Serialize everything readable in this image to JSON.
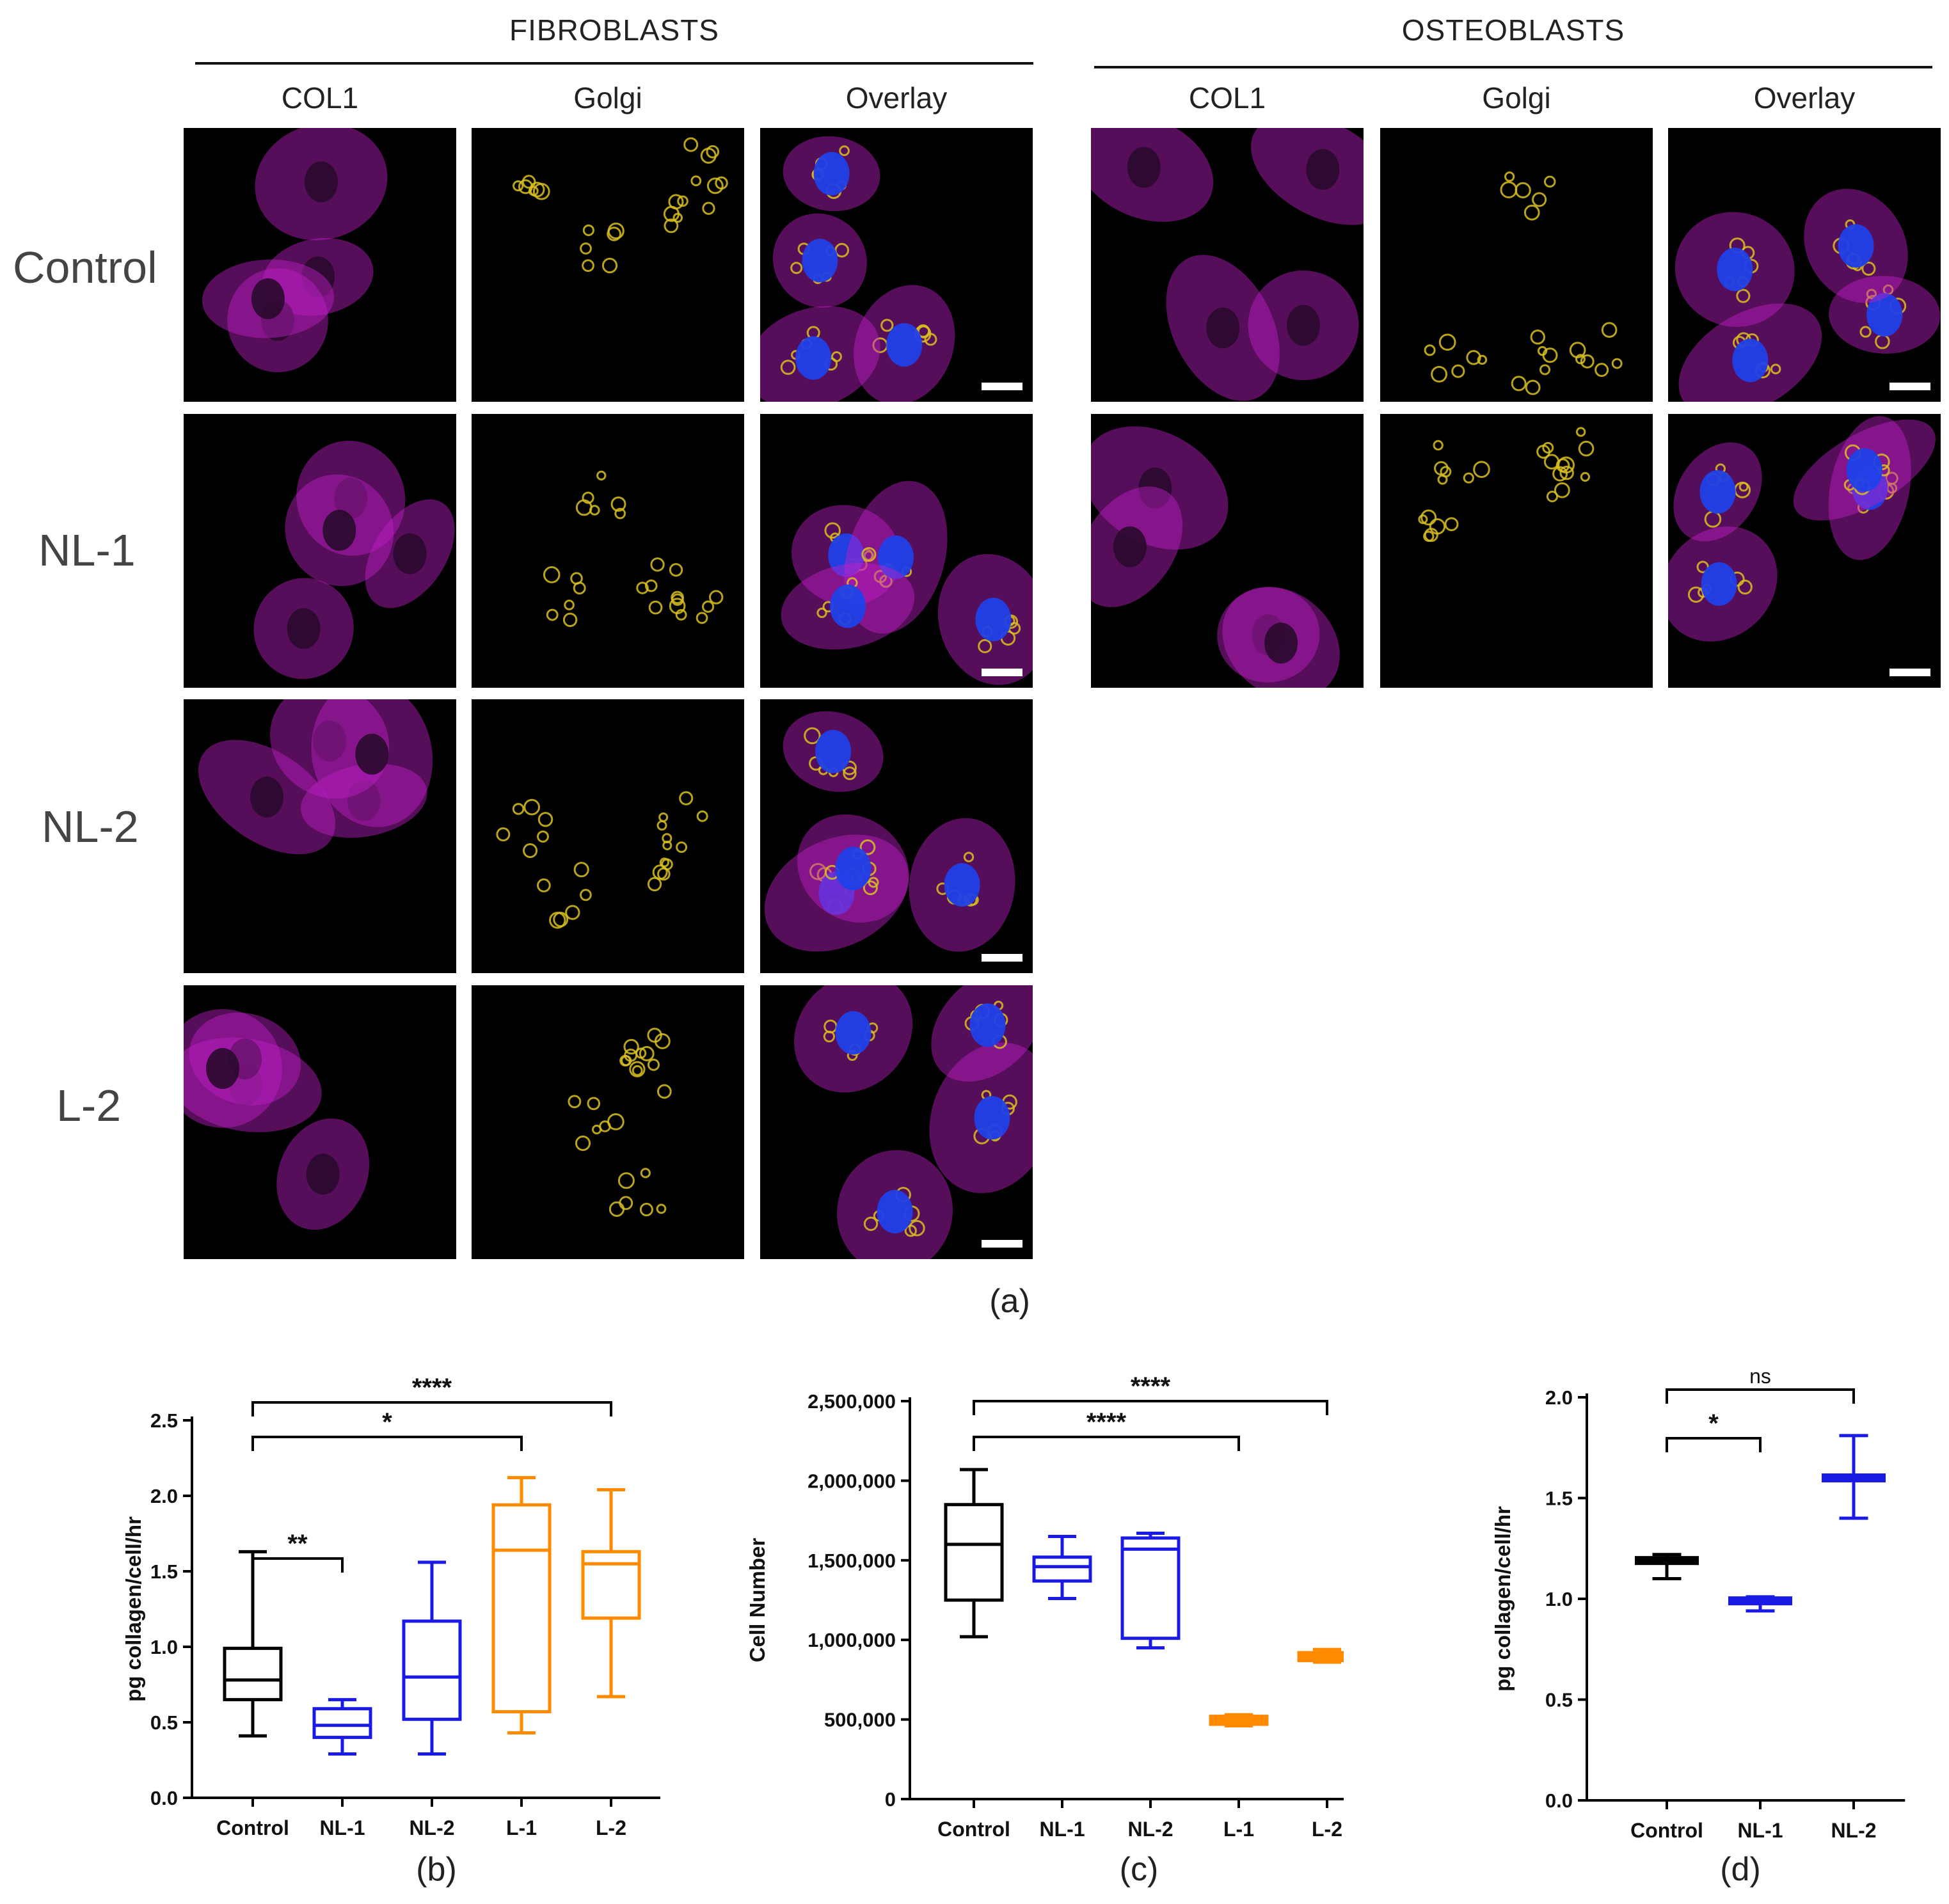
{
  "section_titles": {
    "fibroblasts": "FIBROBLASTS",
    "osteoblasts": "OSTEOBLASTS"
  },
  "column_titles": {
    "fibro": [
      "COL1",
      "Golgi",
      "Overlay"
    ],
    "osteo": [
      "COL1",
      "Golgi",
      "Overlay"
    ]
  },
  "row_labels": [
    "Control",
    "NL-1",
    "NL-2",
    "L-2"
  ],
  "captions": {
    "a": "(a)",
    "b": "(b)",
    "c": "(c)",
    "d": "(d)"
  },
  "colors": {
    "col1": "#c020c8",
    "golgi": "#d8c020",
    "nucleus": "#2040e8",
    "control": "#000000",
    "nl": "#1a1ae6",
    "l": "#ff8a00"
  },
  "chart_data": [
    {
      "id": "b",
      "type": "box",
      "ylabel": "pg collagen/cell/hr",
      "ylim": [
        0,
        2.5
      ],
      "yticks": [
        "0.0",
        "0.5",
        "1.0",
        "1.5",
        "2.0",
        "2.5"
      ],
      "categories": [
        "Control",
        "NL-1",
        "NL-2",
        "L-1",
        "L-2"
      ],
      "boxes": [
        {
          "category": "Control",
          "min": 0.41,
          "q1": 0.65,
          "median": 0.78,
          "q3": 0.99,
          "max": 1.63,
          "color": "#000000"
        },
        {
          "category": "NL-1",
          "min": 0.29,
          "q1": 0.4,
          "median": 0.48,
          "q3": 0.59,
          "max": 0.65,
          "color": "#1a1ae6"
        },
        {
          "category": "NL-2",
          "min": 0.29,
          "q1": 0.52,
          "median": 0.8,
          "q3": 1.17,
          "max": 1.56,
          "color": "#1a1ae6"
        },
        {
          "category": "L-1",
          "min": 0.43,
          "q1": 0.57,
          "median": 1.64,
          "q3": 1.94,
          "max": 2.12,
          "color": "#ff8a00"
        },
        {
          "category": "L-2",
          "min": 0.67,
          "q1": 1.19,
          "median": 1.55,
          "q3": 1.63,
          "max": 2.04,
          "color": "#ff8a00"
        }
      ],
      "significance": [
        {
          "from": "Control",
          "to": "L-2",
          "label": "****"
        },
        {
          "from": "Control",
          "to": "L-1",
          "label": "*"
        },
        {
          "from": "Control",
          "to": "NL-1",
          "label": "**"
        }
      ]
    },
    {
      "id": "c",
      "type": "box",
      "ylabel": "Cell Number",
      "ylim": [
        0,
        2500000
      ],
      "yticks": [
        "0",
        "500,000",
        "1,000,000",
        "1,500,000",
        "2,000,000",
        "2,500,000"
      ],
      "categories": [
        "Control",
        "NL-1",
        "NL-2",
        "L-1",
        "L-2"
      ],
      "boxes": [
        {
          "category": "Control",
          "min": 1020000,
          "q1": 1250000,
          "median": 1600000,
          "q3": 1850000,
          "max": 2070000,
          "color": "#000000"
        },
        {
          "category": "NL-1",
          "min": 1260000,
          "q1": 1370000,
          "median": 1460000,
          "q3": 1520000,
          "max": 1650000,
          "color": "#1a1ae6"
        },
        {
          "category": "NL-2",
          "min": 950000,
          "q1": 1010000,
          "median": 1570000,
          "q3": 1640000,
          "max": 1670000,
          "color": "#1a1ae6"
        },
        {
          "category": "L-1",
          "min": 460000,
          "q1": 470000,
          "median": 500000,
          "q3": 520000,
          "max": 530000,
          "color": "#ff8a00"
        },
        {
          "category": "L-2",
          "min": 860000,
          "q1": 870000,
          "median": 900000,
          "q3": 920000,
          "max": 940000,
          "color": "#ff8a00"
        }
      ],
      "significance": [
        {
          "from": "Control",
          "to": "L-2",
          "label": "****"
        },
        {
          "from": "Control",
          "to": "L-1",
          "label": "****"
        }
      ]
    },
    {
      "id": "d",
      "type": "mean_range",
      "ylabel": "pg collagen/cell/hr",
      "ylim": [
        0,
        2.0
      ],
      "yticks": [
        "0.0",
        "0.5",
        "1.0",
        "1.5",
        "2.0"
      ],
      "categories": [
        "Control",
        "NL-1",
        "NL-2"
      ],
      "points": [
        {
          "category": "Control",
          "low": 1.1,
          "mid": 1.19,
          "high": 1.22,
          "color": "#000000"
        },
        {
          "category": "NL-1",
          "low": 0.94,
          "mid": 0.99,
          "high": 1.01,
          "color": "#1a1ae6"
        },
        {
          "category": "NL-2",
          "low": 1.4,
          "mid": 1.6,
          "high": 1.81,
          "color": "#1a1ae6"
        }
      ],
      "significance": [
        {
          "from": "Control",
          "to": "NL-2",
          "label": "ns"
        },
        {
          "from": "Control",
          "to": "NL-1",
          "label": "*"
        }
      ]
    }
  ]
}
